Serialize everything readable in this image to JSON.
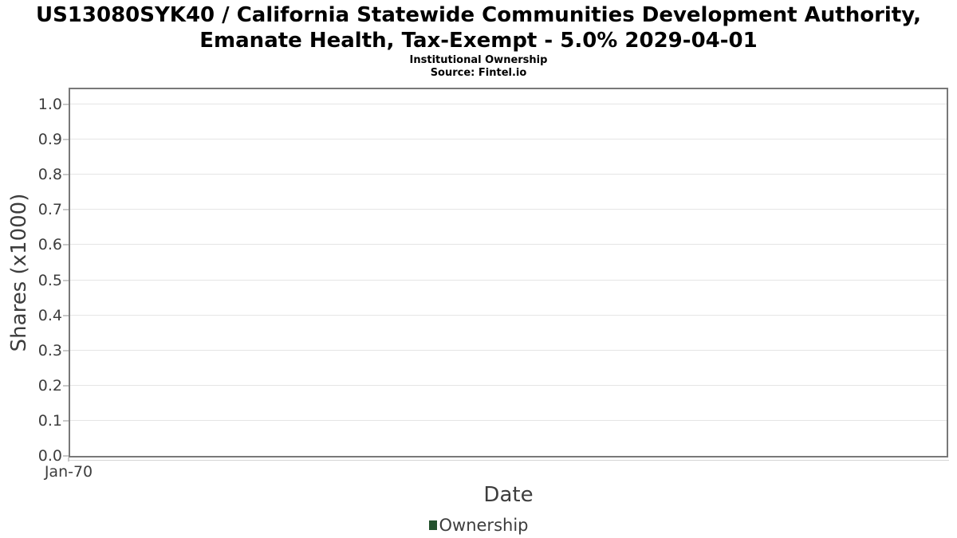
{
  "header": {
    "title_line1": "US13080SYK40 / California Statewide Communities Development Authority,",
    "title_line2": "Emanate Health, Tax-Exempt - 5.0% 2029-04-01",
    "subtitle": "Institutional Ownership",
    "source": "Source: Fintel.io"
  },
  "axes": {
    "y_title": "Shares (x1000)",
    "x_title": "Date",
    "y_ticks": [
      "1.0",
      "0.9",
      "0.8",
      "0.7",
      "0.6",
      "0.5",
      "0.4",
      "0.3",
      "0.2",
      "0.1",
      "0.0"
    ],
    "x_ticks": [
      "Jan-70"
    ]
  },
  "legend": {
    "items": [
      {
        "label": "Ownership",
        "color": "#24522e"
      }
    ]
  },
  "colors": {
    "axis_text": "#3d3d3d",
    "plot_border": "#787878",
    "gridline": "#e5e5e5",
    "tick_mark": "#c9c9c9",
    "legend_swatch": "#24522e"
  },
  "chart_data": {
    "type": "bar",
    "title": "US13080SYK40 / California Statewide Communities Development Authority, Emanate Health, Tax-Exempt - 5.0% 2029-04-01",
    "subtitle": "Institutional Ownership",
    "source": "Source: Fintel.io",
    "xlabel": "Date",
    "ylabel": "Shares (x1000)",
    "categories": [
      "Jan-70"
    ],
    "series": [
      {
        "name": "Ownership",
        "color": "#24522e",
        "values": []
      }
    ],
    "ylim": [
      0.0,
      1.04
    ],
    "y_tick_interval": 0.1,
    "y_tick_labels": [
      "0.0",
      "0.1",
      "0.2",
      "0.3",
      "0.4",
      "0.5",
      "0.6",
      "0.7",
      "0.8",
      "0.9",
      "1.0"
    ],
    "grid": "horizontal",
    "legend_position": "bottom"
  }
}
